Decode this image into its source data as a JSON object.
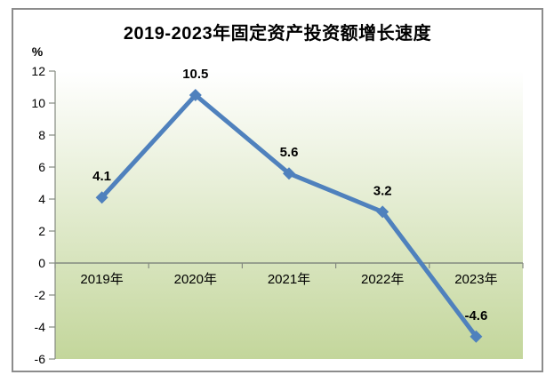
{
  "chart_data": {
    "type": "line",
    "title": "2019-2023年固定资产投资额增长速度",
    "ylabel": "%",
    "categories": [
      "2019年",
      "2020年",
      "2021年",
      "2022年",
      "2023年"
    ],
    "values": [
      4.1,
      10.5,
      5.6,
      3.2,
      -4.6
    ],
    "point_labels": [
      "4.1",
      "10.5",
      "5.6",
      "3.2",
      "-4.6"
    ],
    "ylim": [
      -6,
      12
    ],
    "ytick_step": 2,
    "ytick_labels": [
      "12",
      "10",
      "8",
      "6",
      "4",
      "2",
      "0",
      "-2",
      "-4",
      "-6"
    ],
    "grid": false,
    "legend": "none",
    "marker": "diamond",
    "colors": {
      "line": "#4F81BD",
      "marker": "#4F81BD",
      "plot_bg_top": "#FFFFFF",
      "plot_bg_bottom": "#C3D69B",
      "axis": "#848A80",
      "frame_border": "#8C8C8C",
      "text": "#000000"
    }
  }
}
